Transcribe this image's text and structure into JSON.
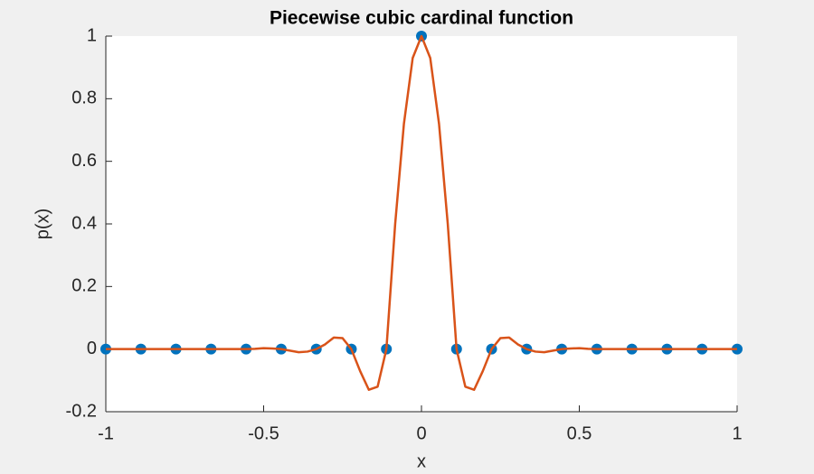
{
  "chart_data": {
    "type": "line",
    "title": "Piecewise cubic cardinal function",
    "x_label": "x",
    "y_label": "p(x)",
    "xlim": [
      -1,
      1
    ],
    "xticks": [
      -1,
      -0.5,
      0,
      0.5,
      1
    ],
    "ylim": [
      -0.2,
      1
    ],
    "yticks": [
      -0.2,
      0,
      0.2,
      0.4,
      0.6,
      0.8,
      1
    ],
    "series": [
      {
        "type": "scatter",
        "color": "#0072bd",
        "x": [
          -1,
          -0.8889,
          -0.7778,
          -0.6667,
          -0.5556,
          -0.4444,
          -0.3333,
          -0.2222,
          -0.1111,
          0,
          0.1111,
          0.2222,
          0.3333,
          0.4444,
          0.5556,
          0.6667,
          0.7778,
          0.8889,
          1
        ],
        "values": [
          0,
          0,
          0,
          0,
          0,
          0,
          0,
          0,
          0,
          1,
          0,
          0,
          0,
          0,
          0,
          0,
          0,
          0,
          0
        ]
      },
      {
        "type": "line",
        "color": "#d95319",
        "x": [
          -1,
          -0.8889,
          -0.7778,
          -0.6667,
          -0.5556,
          -0.5278,
          -0.5,
          -0.4722,
          -0.4444,
          -0.4167,
          -0.3889,
          -0.3611,
          -0.3333,
          -0.3056,
          -0.2778,
          -0.25,
          -0.2222,
          -0.1944,
          -0.1667,
          -0.1389,
          -0.1111,
          -0.0833,
          -0.0556,
          -0.0278,
          0,
          0.0278,
          0.0556,
          0.0833,
          0.1111,
          0.1389,
          0.1667,
          0.1944,
          0.2222,
          0.25,
          0.2778,
          0.3056,
          0.3333,
          0.3611,
          0.3889,
          0.4167,
          0.4444,
          0.4722,
          0.5,
          0.5278,
          0.5556,
          0.6667,
          0.7778,
          0.8889,
          1
        ],
        "values": [
          0,
          0,
          0,
          0,
          0,
          0.001,
          0.003,
          0.002,
          0,
          -0.005,
          -0.01,
          -0.008,
          0,
          0.015,
          0.037,
          0.035,
          0,
          -0.07,
          -0.13,
          -0.12,
          0,
          0.4,
          0.72,
          0.93,
          1,
          0.93,
          0.72,
          0.4,
          0,
          -0.12,
          -0.13,
          -0.07,
          0,
          0.035,
          0.037,
          0.015,
          0,
          -0.008,
          -0.01,
          -0.005,
          0,
          0.002,
          0.003,
          0.001,
          0,
          0,
          0,
          0,
          0
        ]
      }
    ]
  }
}
